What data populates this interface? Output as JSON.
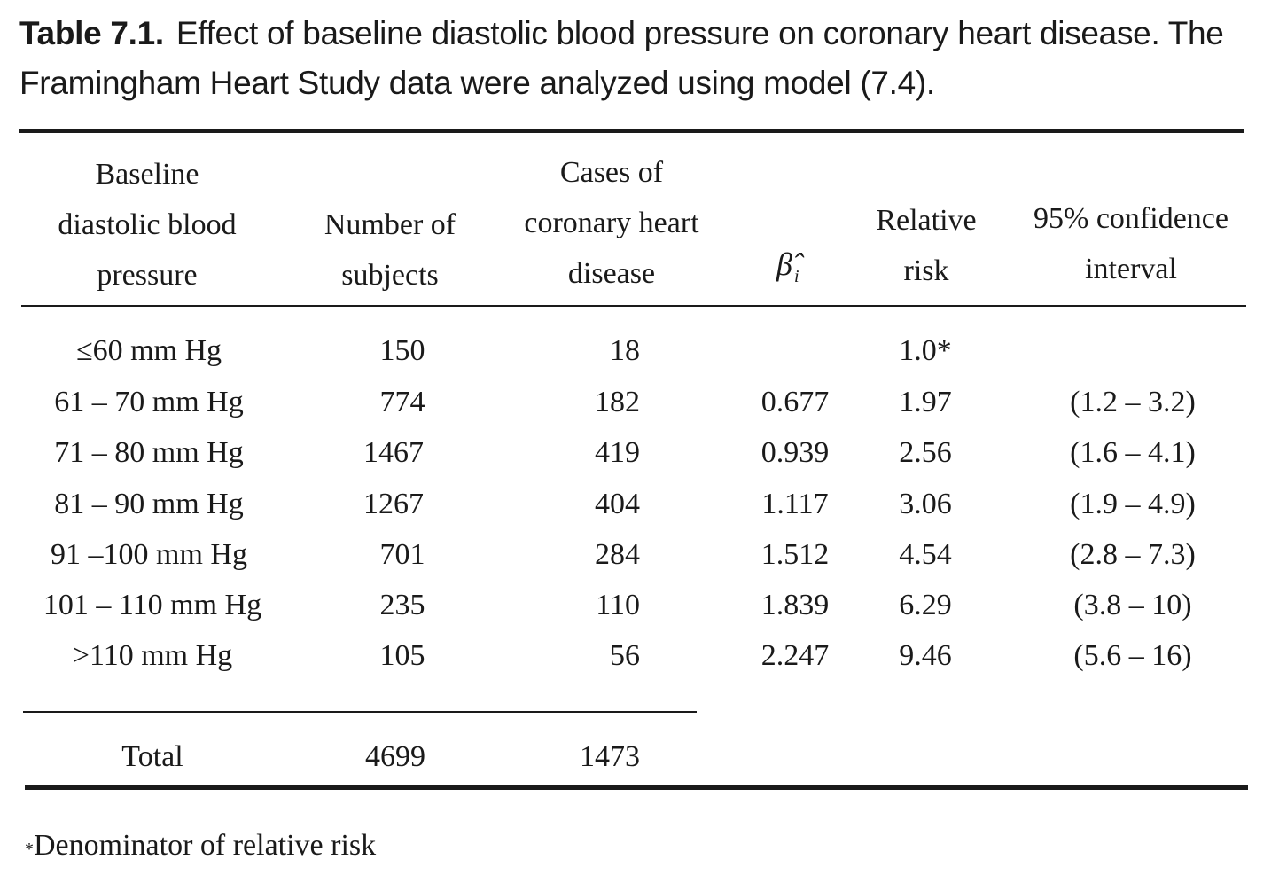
{
  "caption": {
    "label": "Table 7.1.",
    "text": "Effect of baseline diastolic blood pressure on coronary heart disease. The Framingham Heart Study data were analyzed using model (7.4)."
  },
  "headers": {
    "bp": [
      "Baseline",
      "diastolic blood",
      "pressure"
    ],
    "subjects": [
      "Number of",
      "subjects"
    ],
    "cases": [
      "Cases of",
      "coronary heart",
      "disease"
    ],
    "beta": "β̂",
    "beta_sub": "i",
    "rr": [
      "Relative",
      "risk"
    ],
    "ci": [
      "95% confidence",
      "interval"
    ]
  },
  "rows": [
    {
      "bp": "≤60 mm Hg",
      "subjects": "150",
      "cases": "18",
      "beta": "",
      "rr": "1.0*",
      "ci": ""
    },
    {
      "bp": "61 – 70 mm Hg",
      "subjects": "774",
      "cases": "182",
      "beta": "0.677",
      "rr": "1.97",
      "ci": "(1.2 – 3.2)"
    },
    {
      "bp": "71 – 80 mm Hg",
      "subjects": "1467",
      "cases": "419",
      "beta": "0.939",
      "rr": "2.56",
      "ci": "(1.6 – 4.1)"
    },
    {
      "bp": "81 – 90 mm Hg",
      "subjects": "1267",
      "cases": "404",
      "beta": "1.117",
      "rr": "3.06",
      "ci": "(1.9 – 4.9)"
    },
    {
      "bp": "91 –100 mm Hg",
      "subjects": "701",
      "cases": "284",
      "beta": "1.512",
      "rr": "4.54",
      "ci": "(2.8 – 7.3)"
    },
    {
      "bp": "101 – 110 mm Hg",
      "subjects": "235",
      "cases": "110",
      "beta": "1.839",
      "rr": "6.29",
      "ci": "(3.8 – 10)"
    },
    {
      "bp": ">110 mm Hg",
      "subjects": "105",
      "cases": "56",
      "beta": "2.247",
      "rr": "9.46",
      "ci": "(5.6 – 16)"
    }
  ],
  "total": {
    "label": "Total",
    "subjects": "4699",
    "cases": "1473"
  },
  "footnote": {
    "mark": "*",
    "text": "Denominator of relative risk"
  }
}
